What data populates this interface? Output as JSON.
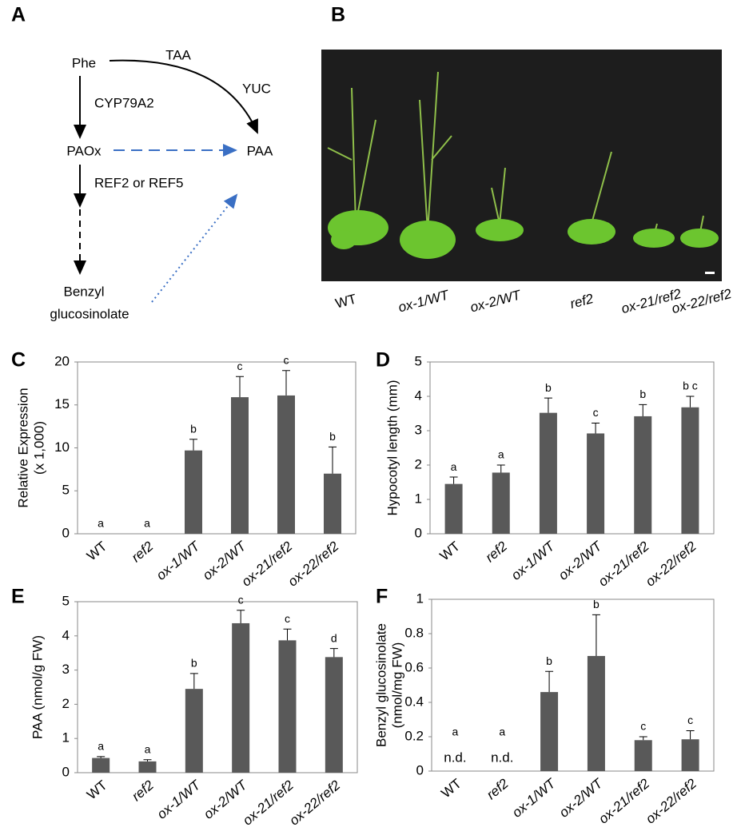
{
  "diagram": {
    "panel_label": "A",
    "nodes": [
      {
        "label": "Phe"
      },
      {
        "label": "PAOx"
      },
      {
        "label": "PAA"
      },
      {
        "label": [
          "Benzyl",
          "glucosinolate"
        ]
      }
    ],
    "edge_labels": [
      "TAA",
      "YUC",
      "CYP79A2",
      "REF2 or REF5"
    ]
  },
  "photo": {
    "panel_label": "B",
    "labels": [
      "WT",
      "ox-1/WT",
      "ox-2/WT",
      "ref2",
      "ox-21/ref2",
      "ox-22/ref2"
    ]
  },
  "chart_data": [
    {
      "panel_label": "C",
      "type": "bar",
      "ylabel": [
        "Relative Expression",
        "(x 1,000)"
      ],
      "categories": [
        "WT",
        "ref2",
        "ox-1/WT",
        "ox-2/WT",
        "ox-21/ref2",
        "ox-22/ref2"
      ],
      "values": [
        0,
        0,
        9.7,
        15.9,
        16.1,
        7.0
      ],
      "errors": [
        0,
        0,
        1.3,
        2.4,
        2.9,
        3.1
      ],
      "letters": [
        "a",
        "a",
        "b",
        "c",
        "c",
        "b"
      ],
      "color": "#595959",
      "ylim": [
        0,
        20
      ],
      "yticks": [
        0,
        5,
        10,
        15,
        20
      ]
    },
    {
      "panel_label": "D",
      "type": "bar",
      "ylabel": "Hypocotyl length (mm)",
      "categories": [
        "WT",
        "ref2",
        "ox-1/WT",
        "ox-2/WT",
        "ox-21/ref2",
        "ox-22/ref2"
      ],
      "values": [
        1.45,
        1.78,
        3.52,
        2.92,
        3.42,
        3.68
      ],
      "errors": [
        0.2,
        0.22,
        0.43,
        0.3,
        0.34,
        0.32
      ],
      "letters": [
        "a",
        "a",
        "b",
        "c",
        "b",
        "b c"
      ],
      "color": "#595959",
      "ylim": [
        0,
        5
      ],
      "yticks": [
        0,
        1,
        2,
        3,
        4,
        5
      ]
    },
    {
      "panel_label": "E",
      "type": "bar",
      "ylabel": "PAA (nmol/g FW)",
      "categories": [
        "WT",
        "ref2",
        "ox-1/WT",
        "ox-2/WT",
        "ox-21/ref2",
        "ox-22/ref2"
      ],
      "values": [
        0.43,
        0.33,
        2.45,
        4.37,
        3.87,
        3.38
      ],
      "errors": [
        0.04,
        0.05,
        0.45,
        0.38,
        0.33,
        0.25
      ],
      "letters": [
        "a",
        "a",
        "b",
        "c",
        "c",
        "d"
      ],
      "color": "#595959",
      "ylim": [
        0,
        5
      ],
      "yticks": [
        0,
        1,
        2,
        3,
        4,
        5
      ]
    },
    {
      "panel_label": "F",
      "type": "bar",
      "ylabel": [
        "Benzyl glucosinolate",
        "(nmol/mg FW)"
      ],
      "categories": [
        "WT",
        "ref2",
        "ox-1/WT",
        "ox-2/WT",
        "ox-21/ref2",
        "ox-22/ref2"
      ],
      "values": [
        null,
        null,
        0.46,
        0.67,
        0.18,
        0.185
      ],
      "value_labels": [
        "n.d.",
        "n.d.",
        null,
        null,
        null,
        null
      ],
      "errors": [
        null,
        null,
        0.12,
        0.24,
        0.02,
        0.05
      ],
      "letters": [
        "a",
        "a",
        "b",
        "b",
        "c",
        "c"
      ],
      "color": "#595959",
      "ylim": [
        0,
        1
      ],
      "yticks": [
        0,
        0.2,
        0.4,
        0.6,
        0.8,
        1
      ]
    }
  ]
}
